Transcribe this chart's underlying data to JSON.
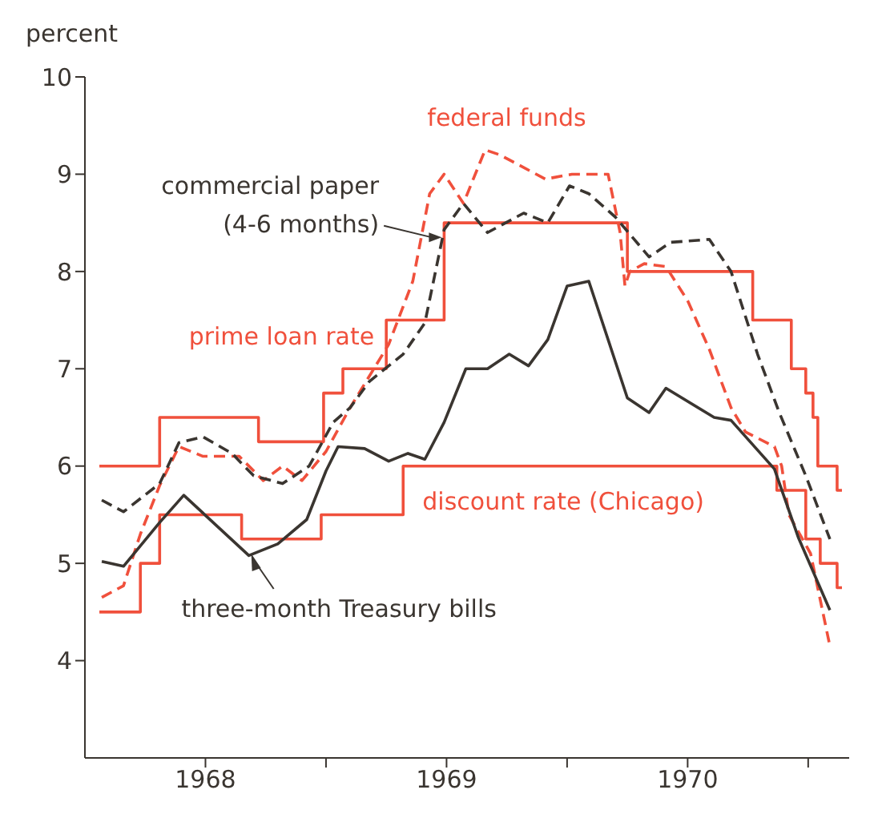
{
  "chart_data": {
    "type": "line",
    "ylabel": "percent",
    "xlim": [
      1968,
      1971.17
    ],
    "ylim": [
      3,
      10
    ],
    "yticks": [
      4,
      5,
      6,
      7,
      8,
      9,
      10
    ],
    "xticks": [
      {
        "value": 1968.5,
        "label": "1968"
      },
      {
        "value": 1969,
        "label": null
      },
      {
        "value": 1969.5,
        "label": "1969"
      },
      {
        "value": 1970,
        "label": null
      },
      {
        "value": 1970.5,
        "label": "1970"
      },
      {
        "value": 1971,
        "label": null
      }
    ],
    "annotations": [
      {
        "text": "three-month Treasury bills",
        "x": 1968.69,
        "y": 5.1
      },
      {
        "text": "(4-6 months)",
        "x": 1969.48,
        "y": 8.35
      }
    ],
    "series": [
      {
        "name": "prime loan rate",
        "type": "step",
        "color": "#f0503c",
        "line_style": "solid",
        "x": [
          1968.06,
          1968.31,
          1968.72,
          1968.99,
          1969.07,
          1969.25,
          1969.49,
          1970.25,
          1970.77,
          1970.93,
          1970.99,
          1971.02,
          1971.04,
          1971.12,
          1971.14
        ],
        "values": [
          6.0,
          6.5,
          6.25,
          6.75,
          7.0,
          7.5,
          8.5,
          8.0,
          7.5,
          7.0,
          6.75,
          6.5,
          6.0,
          5.75,
          5.75
        ]
      },
      {
        "name": "discount rate (Chicago)",
        "type": "step",
        "color": "#f0503c",
        "line_style": "solid",
        "x": [
          1968.06,
          1968.23,
          1968.31,
          1968.65,
          1968.98,
          1969.32,
          1970.87,
          1970.99,
          1971.05,
          1971.12,
          1971.14
        ],
        "values": [
          4.5,
          5.0,
          5.5,
          5.25,
          5.5,
          6.0,
          5.75,
          5.25,
          5.0,
          4.75,
          4.75
        ]
      },
      {
        "name": "federal funds",
        "type": "line",
        "color": "#f0503c",
        "line_style": "dashed",
        "x": [
          1968.07,
          1968.16,
          1968.23,
          1968.31,
          1968.39,
          1968.49,
          1968.64,
          1968.74,
          1968.82,
          1968.9,
          1969.0,
          1969.1,
          1969.26,
          1969.36,
          1969.43,
          1969.49,
          1969.57,
          1969.66,
          1969.72,
          1969.91,
          1970.02,
          1970.17,
          1970.22,
          1970.24,
          1970.26,
          1970.32,
          1970.41,
          1970.5,
          1970.59,
          1970.68,
          1970.74,
          1970.86,
          1970.89,
          1970.92,
          1971.01,
          1971.09
        ],
        "values": [
          4.65,
          4.77,
          5.3,
          5.8,
          6.2,
          6.1,
          6.1,
          5.85,
          6.0,
          5.85,
          6.15,
          6.6,
          7.25,
          7.9,
          8.8,
          9.0,
          8.7,
          9.25,
          9.2,
          8.95,
          9.0,
          9.0,
          8.4,
          7.85,
          8.0,
          8.08,
          8.05,
          7.7,
          7.2,
          6.6,
          6.35,
          6.2,
          6.0,
          5.5,
          5.1,
          4.15
        ]
      },
      {
        "name": "commercial paper",
        "type": "line",
        "color": "#3a3530",
        "line_style": "dashed",
        "x": [
          1968.07,
          1968.16,
          1968.31,
          1968.39,
          1968.49,
          1968.61,
          1968.7,
          1968.82,
          1968.93,
          1969.03,
          1969.1,
          1969.18,
          1969.32,
          1969.41,
          1969.49,
          1969.57,
          1969.67,
          1969.82,
          1969.92,
          1970.01,
          1970.09,
          1970.2,
          1970.34,
          1970.43,
          1970.59,
          1970.68,
          1970.79,
          1970.88,
          1970.99,
          1971.09
        ],
        "values": [
          5.65,
          5.53,
          5.82,
          6.24,
          6.3,
          6.13,
          5.9,
          5.82,
          6.0,
          6.45,
          6.6,
          6.87,
          7.15,
          7.47,
          8.43,
          8.7,
          8.4,
          8.6,
          8.5,
          8.88,
          8.8,
          8.56,
          8.15,
          8.3,
          8.33,
          8.0,
          7.15,
          6.55,
          5.9,
          5.25
        ]
      },
      {
        "type": "line",
        "color": "#3a3530",
        "line_style": "solid",
        "x": [
          1968.07,
          1968.16,
          1968.31,
          1968.41,
          1968.68,
          1968.8,
          1968.92,
          1969.0,
          1969.05,
          1969.16,
          1969.26,
          1969.34,
          1969.41,
          1969.49,
          1969.58,
          1969.67,
          1969.76,
          1969.84,
          1969.92,
          1970.0,
          1970.09,
          1970.25,
          1970.34,
          1970.41,
          1970.61,
          1970.68,
          1970.86,
          1970.96,
          1971.09
        ],
        "values": [
          5.02,
          4.97,
          5.42,
          5.7,
          5.08,
          5.2,
          5.45,
          5.95,
          6.2,
          6.18,
          6.05,
          6.13,
          6.07,
          6.45,
          7.0,
          7.0,
          7.15,
          7.03,
          7.3,
          7.85,
          7.9,
          6.7,
          6.55,
          6.8,
          6.5,
          6.47,
          5.97,
          5.26,
          4.52
        ]
      }
    ]
  }
}
